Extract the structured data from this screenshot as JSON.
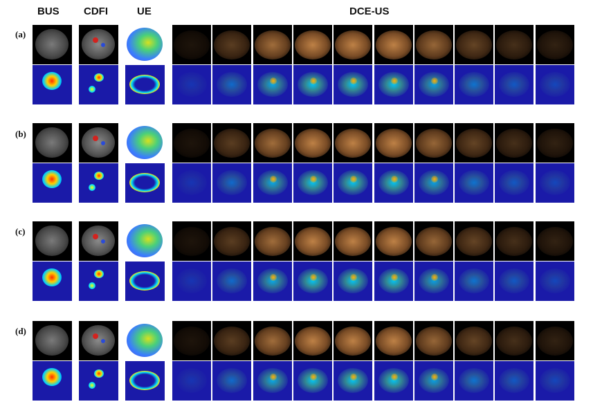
{
  "headers": {
    "bus": "BUS",
    "cdfi": "CDFI",
    "ue": "UE",
    "dceus": "DCE-US"
  },
  "rows": [
    {
      "label": "(a)"
    },
    {
      "label": "(b)"
    },
    {
      "label": "(c)"
    },
    {
      "label": "(d)"
    }
  ],
  "colors": {
    "ultrasound_bg": "#000000",
    "heatmap_bg": "#1a1aa8",
    "contrast_tone": "#c8884a",
    "heat_hot": "#ff2a00",
    "heat_mid": "#00e0ff"
  }
}
